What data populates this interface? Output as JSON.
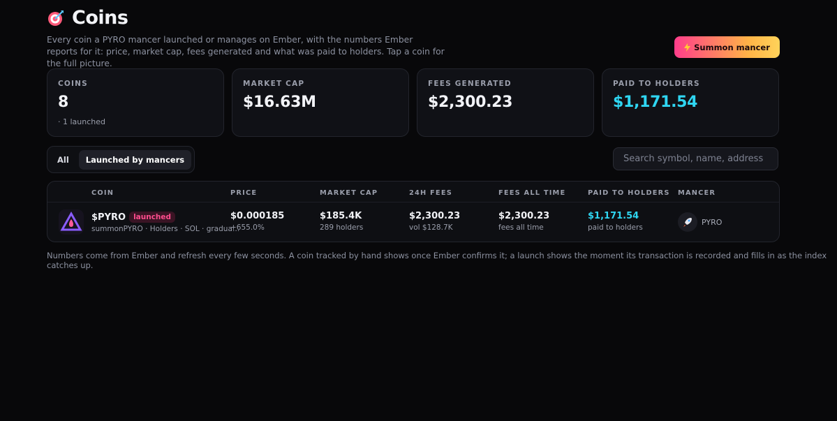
{
  "header": {
    "title": "Coins",
    "description": "Every coin a PYRO mancer launched or manages on Ember, with the numbers Ember reports for it: price, market cap, fees generated and what was paid to holders. Tap a coin for the full picture.",
    "button": "Summon mancer"
  },
  "stats": [
    {
      "label": "COINS",
      "value": "8",
      "note": "· 1 launched"
    },
    {
      "label": "MARKET CAP",
      "value": "$16.63M"
    },
    {
      "label": "FEES GENERATED",
      "value": "$2,300.23"
    },
    {
      "label": "PAID TO HOLDERS",
      "value": "$1,171.54"
    }
  ],
  "filters": [
    "All",
    "Launched by mancers"
  ],
  "search_placeholder": "Search symbol, name, address",
  "table": {
    "columns": [
      "COIN",
      "PRICE",
      "MARKET CAP",
      "24H FEES",
      "FEES ALL TIME",
      "PAID TO HOLDERS",
      "MANCER"
    ],
    "rows": [
      {
        "symbol": "$PYRO",
        "badge": "launched",
        "subtitle": "summonPYRO · Holders · SOL · gradua…",
        "price": "$0.000185",
        "change": "+655.0%",
        "market_cap": "$185.4K",
        "holders": "289 holders",
        "fees_24h": "$2,300.23",
        "volume": "vol $128.7K",
        "fees_all_time": "$2,300.23",
        "fees_all_time_note": "fees all time",
        "paid": "$1,171.54",
        "paid_note": "paid to holders",
        "mancer": "PYRO"
      }
    ]
  },
  "footer": "Numbers come from Ember and refresh every few seconds. A coin tracked by hand shows once Ember confirms it; a launch shows the moment its transaction is recorded and fills in as the index catches up."
}
